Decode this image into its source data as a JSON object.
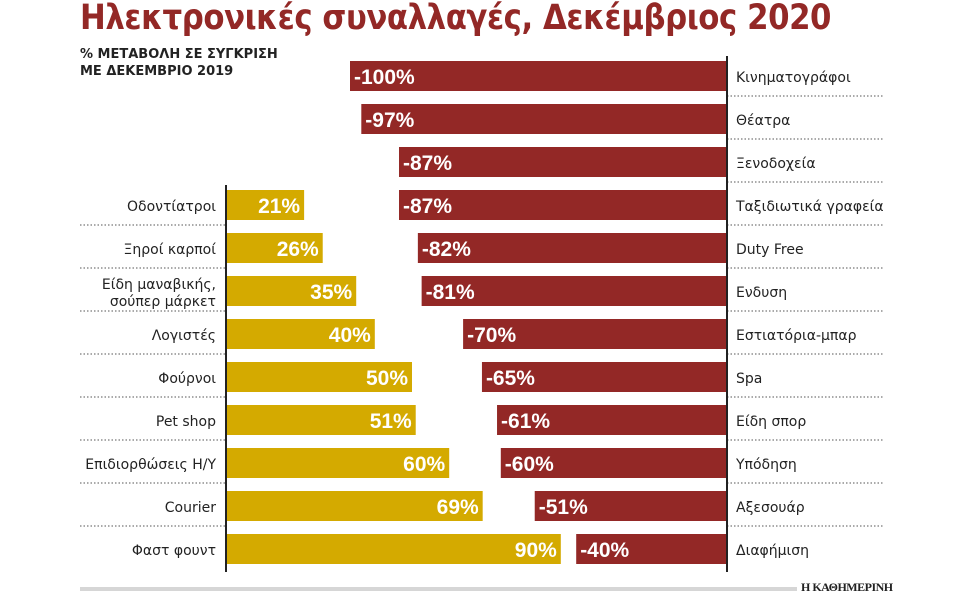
{
  "chart_data": {
    "type": "bar",
    "title": "Ηλεκτρονικές συναλλαγές, Δεκέμβριος 2020",
    "subtitle": [
      "% ΜΕΤΑΒΟΛΗ ΣΕ ΣΥΓΚΡΙΣΗ",
      "ΜΕ ΔΕΚΕΜΒΡΙΟ 2019"
    ],
    "colors": {
      "negative": "#932826",
      "positive": "#d4aa00"
    },
    "negative": {
      "categories": [
        "Κινηματογράφοι",
        "Θέατρα",
        "Ξενοδοχεία",
        "Ταξιδιωτικά γραφεία",
        "Duty Free",
        "Ενδυση",
        "Εστιατόρια-μπαρ",
        "Spa",
        "Είδη σπορ",
        "Υπόδηση",
        "Αξεσουάρ",
        "Διαφήμιση"
      ],
      "values": [
        -100,
        -97,
        -87,
        -87,
        -82,
        -81,
        -70,
        -65,
        -61,
        -60,
        -51,
        -40
      ],
      "labels": [
        "-100%",
        "-97%",
        "-87%",
        "-87%",
        "-82%",
        "-81%",
        "-70%",
        "-65%",
        "-61%",
        "-60%",
        "-51%",
        "-40%"
      ]
    },
    "positive": {
      "categories": [
        "Οδοντίατροι",
        "Ξηροί καρποί",
        [
          "Είδη μαναβικής,",
          "σούπερ μάρκετ"
        ],
        "Λογιστές",
        "Φούρνοι",
        "Pet shop",
        "Επιδιορθώσεις Η/Υ",
        "Courier",
        "Φαστ φουντ"
      ],
      "values": [
        21,
        26,
        35,
        40,
        50,
        51,
        60,
        69,
        90
      ],
      "labels": [
        "21%",
        "26%",
        "35%",
        "40%",
        "50%",
        "51%",
        "60%",
        "69%",
        "90%"
      ]
    }
  },
  "source": "Η ΚΑΘΗΜΕΡΙΝΗ"
}
